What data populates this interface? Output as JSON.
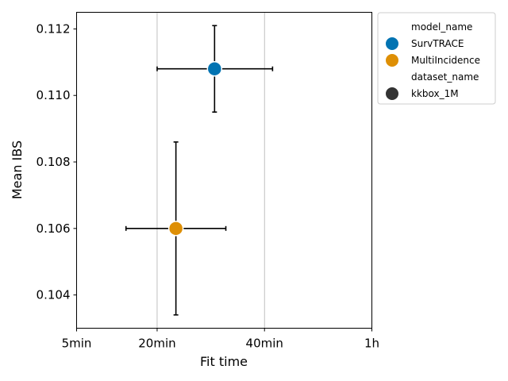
{
  "chart_data": {
    "type": "scatter",
    "xlabel": "Fit time",
    "ylabel": "Mean IBS",
    "x_ticks": [
      "5min",
      "20min",
      "40min",
      "1h"
    ],
    "x_tick_minutes": [
      5,
      20,
      40,
      60
    ],
    "xlim": [
      5,
      60
    ],
    "ylim": [
      0.103,
      0.1125
    ],
    "y_ticks": [
      0.104,
      0.106,
      0.108,
      0.11,
      0.112
    ],
    "y_tick_labels": [
      "0.104",
      "0.106",
      "0.108",
      "0.110",
      "0.112"
    ],
    "grid": "x-major",
    "legend_position": "outside-right-top",
    "legend": [
      {
        "kind": "header",
        "text": "model_name"
      },
      {
        "kind": "marker",
        "text": "SurvTRACE",
        "color": "#0173b2"
      },
      {
        "kind": "marker",
        "text": "MultiIncidence",
        "color": "#de8f05"
      },
      {
        "kind": "header",
        "text": "dataset_name"
      },
      {
        "kind": "marker",
        "text": "kkbox_1M",
        "color": "#333333"
      }
    ],
    "series": [
      {
        "name": "SurvTRACE",
        "color": "#0173b2",
        "x": 30.7,
        "y": 0.1108,
        "xerr": [
          20.0,
          41.5
        ],
        "yerr": [
          0.1095,
          0.1121
        ]
      },
      {
        "name": "MultiIncidence",
        "color": "#de8f05",
        "x": 23.5,
        "y": 0.106,
        "xerr": [
          14.2,
          32.8
        ],
        "yerr": [
          0.1034,
          0.1086
        ]
      }
    ]
  }
}
